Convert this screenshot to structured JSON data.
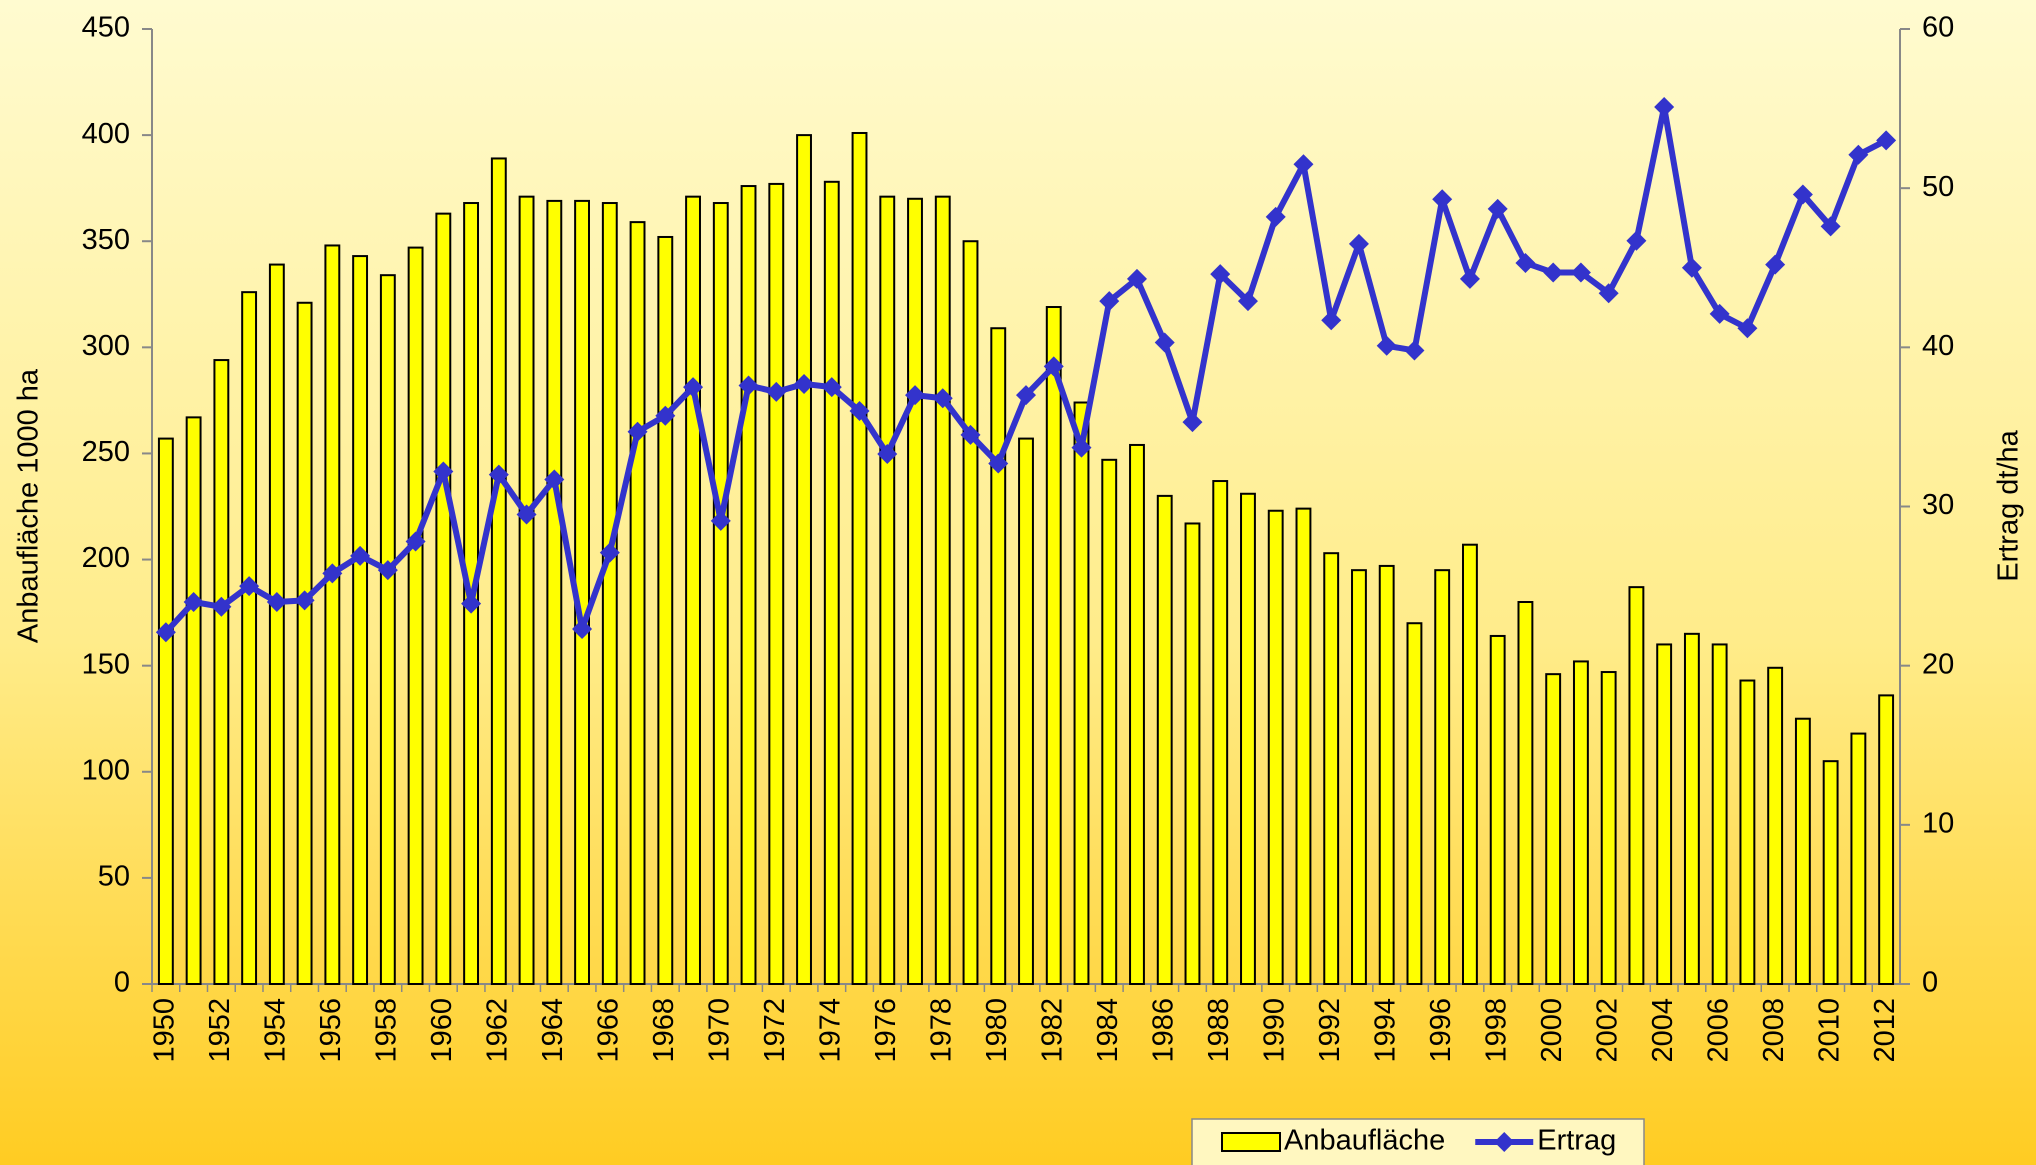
{
  "chart_data": {
    "type": "bar-line",
    "categories": [
      "1950",
      null,
      "1952",
      null,
      "1954",
      null,
      "1956",
      null,
      "1958",
      null,
      "1960",
      null,
      "1962",
      null,
      "1964",
      null,
      "1966",
      null,
      "1968",
      null,
      "1970",
      null,
      "1972",
      null,
      "1974",
      null,
      "1976",
      null,
      "1978",
      null,
      "1980",
      null,
      "1982",
      null,
      "1984",
      null,
      "1986",
      null,
      "1988",
      null,
      "1990",
      null,
      "1992",
      null,
      "1994",
      null,
      "1996",
      null,
      "1998",
      null,
      "2000",
      null,
      "2002",
      null,
      "2004",
      null,
      "2006",
      null,
      "2008",
      null,
      "2010",
      null,
      "2012"
    ],
    "series": [
      {
        "name": "Anbaufläche",
        "type": "bar",
        "color": "#ffff00",
        "axis": "y",
        "values": [
          257,
          267,
          294,
          326,
          339,
          321,
          348,
          343,
          334,
          347,
          363,
          368,
          389,
          371,
          369,
          369,
          368,
          359,
          352,
          371,
          368,
          376,
          377,
          400,
          378,
          401,
          371,
          370,
          371,
          350,
          309,
          257,
          319,
          274,
          247,
          254,
          230,
          217,
          237,
          231,
          223,
          224,
          203,
          195,
          197,
          170,
          195,
          207,
          164,
          180,
          146,
          152,
          147,
          187,
          160,
          165,
          160,
          143,
          149,
          125,
          105,
          118,
          136
        ]
      },
      {
        "name": "Ertrag",
        "type": "line",
        "color": "#3333cc",
        "axis": "y2",
        "values": [
          22.1,
          24.0,
          23.7,
          25.0,
          24.0,
          24.1,
          25.8,
          26.9,
          26.0,
          27.8,
          32.2,
          23.9,
          32.0,
          29.5,
          31.7,
          22.3,
          27.1,
          34.7,
          35.7,
          37.5,
          29.1,
          37.6,
          37.2,
          37.7,
          37.5,
          36.0,
          33.3,
          37.0,
          36.8,
          34.5,
          32.7,
          37.0,
          38.8,
          33.7,
          42.9,
          44.3,
          40.3,
          35.3,
          44.6,
          42.9,
          48.2,
          51.5,
          41.7,
          46.5,
          40.1,
          39.8,
          49.3,
          44.3,
          48.7,
          45.3,
          44.7,
          44.7,
          43.4,
          46.7,
          55.1,
          45.0,
          42.1,
          41.2,
          45.2,
          49.6,
          47.6,
          52.1,
          53.0
        ]
      }
    ],
    "y_label": "Anbaufläche 1000 ha",
    "y2_label": "Ertrag dt/ha",
    "ylim": [
      0,
      450
    ],
    "yticks": [
      0,
      50,
      100,
      150,
      200,
      250,
      300,
      350,
      400,
      450
    ],
    "y2lim": [
      0,
      60
    ],
    "y2ticks": [
      0,
      10,
      20,
      30,
      40,
      50,
      60
    ],
    "grid": false,
    "legend_position": "bottom"
  }
}
